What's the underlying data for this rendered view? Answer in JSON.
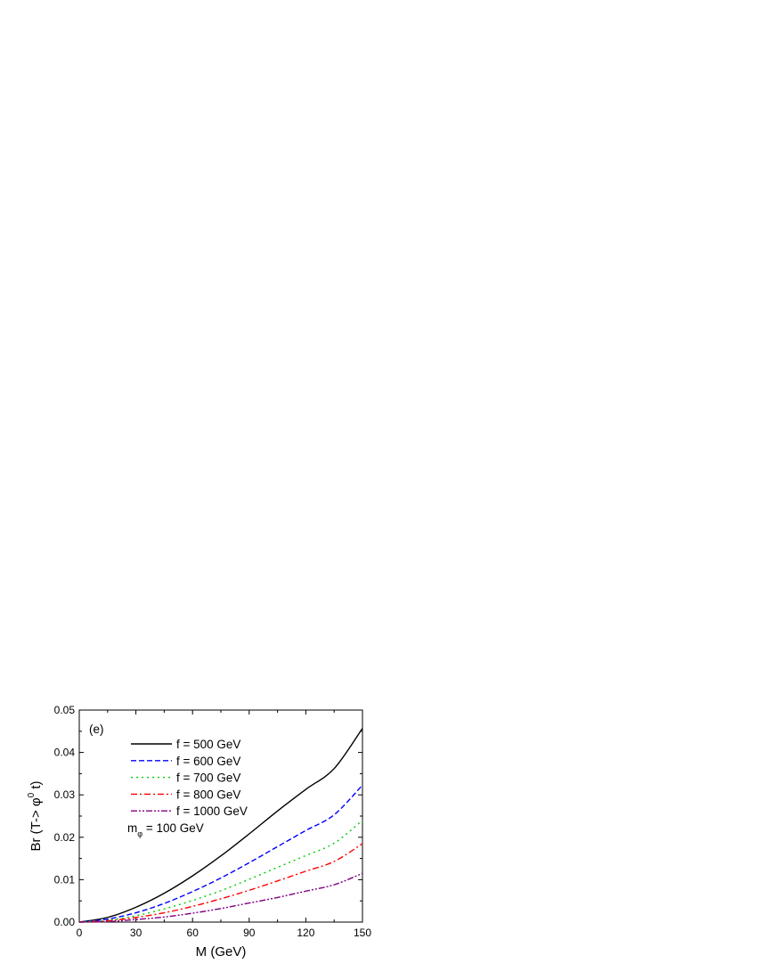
{
  "chart_data": {
    "type": "line",
    "panel_label": "(e)",
    "xlabel": "M (GeV)",
    "ylabel_parts": {
      "prefix": "Br (T-> ",
      "symbol": "φ",
      "superscript": "0",
      "suffix": " t)"
    },
    "annotation": {
      "symbol": "m",
      "subscript": "φ",
      "text": " = 100 GeV"
    },
    "xlim": [
      0,
      150
    ],
    "ylim": [
      0,
      0.05
    ],
    "x_ticks": [
      0,
      30,
      60,
      90,
      120,
      150
    ],
    "x_tick_labels": [
      "0",
      "30",
      "60",
      "90",
      "120",
      "150"
    ],
    "y_ticks": [
      0,
      0.01,
      0.02,
      0.03,
      0.04,
      0.05
    ],
    "y_tick_labels": [
      "0.00",
      "0.01",
      "0.02",
      "0.03",
      "0.04",
      "0.05"
    ],
    "legend_position": "upper-left",
    "x": [
      0,
      15,
      30,
      45,
      60,
      75,
      90,
      105,
      120,
      135,
      150
    ],
    "series": [
      {
        "name": "f = 500 GeV",
        "color": "#000000",
        "style": "solid",
        "values": [
          0,
          0.0011,
          0.0035,
          0.0068,
          0.0109,
          0.0156,
          0.0208,
          0.0262,
          0.0313,
          0.0362,
          0.0457
        ]
      },
      {
        "name": "f = 600 GeV",
        "color": "#0000ff",
        "style": "dash",
        "values": [
          0,
          0.0007,
          0.0022,
          0.0044,
          0.0072,
          0.0104,
          0.014,
          0.0178,
          0.0216,
          0.0253,
          0.0323
        ]
      },
      {
        "name": "f = 700 GeV",
        "color": "#00cc00",
        "style": "dot",
        "values": [
          0,
          0.0004,
          0.0015,
          0.0031,
          0.0051,
          0.0074,
          0.0101,
          0.0129,
          0.0157,
          0.0186,
          0.024
        ]
      },
      {
        "name": "f = 800 GeV",
        "color": "#ff0000",
        "style": "dashdot",
        "values": [
          0,
          0.0003,
          0.0011,
          0.0022,
          0.0037,
          0.0055,
          0.0075,
          0.0097,
          0.012,
          0.0143,
          0.0185
        ]
      },
      {
        "name": "f = 1000 GeV",
        "color": "#800080",
        "style": "dashdotdot",
        "values": [
          0,
          0.0001,
          0.0006,
          0.0012,
          0.0021,
          0.0032,
          0.0045,
          0.0058,
          0.0073,
          0.0088,
          0.0115
        ]
      }
    ]
  }
}
